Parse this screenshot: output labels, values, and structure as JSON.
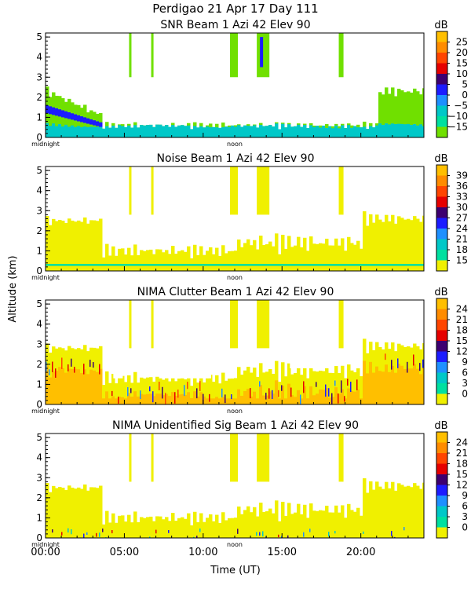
{
  "figure": {
    "title": "Perdigao  21 Apr 17 Day 111",
    "y_axis_label": "Altitude (km)",
    "x_axis_label": "Time (UT)",
    "x_tick_labels": [
      "00:00",
      "05:00",
      "10:00",
      "15:00",
      "20:00"
    ],
    "x_tick_hours": [
      0,
      5,
      10,
      15,
      20
    ],
    "midnight_label": "midnight",
    "noon_label": "noon"
  },
  "chart_data": [
    {
      "type": "heatmap",
      "title": "SNR Beam 1 Azi  42 Elev 90",
      "xlabel": "Time (UT)",
      "ylabel": "Altitude (km)",
      "xlim": [
        0,
        24
      ],
      "ylim": [
        0,
        5.2
      ],
      "yticks": [
        0,
        1,
        2,
        3,
        4,
        5
      ],
      "colorbar": {
        "unit": "dB",
        "ticks": [
          25,
          20,
          15,
          10,
          5,
          0,
          -5,
          -10,
          -15
        ],
        "colors": [
          "#ffbf00",
          "#ff8c00",
          "#ff4500",
          "#e60000",
          "#3d0070",
          "#1c1cff",
          "#1e90ff",
          "#00c8c8",
          "#00e0a0",
          "#70e000"
        ]
      },
      "echo_regions": [
        {
          "hours": [
            0,
            3.5
          ],
          "altitude_top_km": 2.3,
          "level": "-10 to -15 dB"
        },
        {
          "hours": [
            3.5,
            21
          ],
          "altitude_top_km": 0.8,
          "level": "-15 dB"
        },
        {
          "hours": [
            21,
            24
          ],
          "altitude_top_km": 2.7,
          "level": "-10 to -15 dB"
        }
      ],
      "peak_level": "5 to 10 dB"
    },
    {
      "type": "heatmap",
      "title": "Noise Beam 1 Azi  42 Elev 90",
      "xlabel": "Time (UT)",
      "ylabel": "Altitude (km)",
      "xlim": [
        0,
        24
      ],
      "ylim": [
        0,
        5.2
      ],
      "yticks": [
        0,
        1,
        2,
        3,
        4,
        5
      ],
      "colorbar": {
        "unit": "dB",
        "ticks": [
          39,
          36,
          33,
          30,
          27,
          24,
          21,
          18,
          15
        ],
        "colors": [
          "#ffbf00",
          "#ff8c00",
          "#ff4500",
          "#e60000",
          "#3d0070",
          "#1c1cff",
          "#1e90ff",
          "#00c8c8",
          "#00e0a0",
          "#f0f000"
        ]
      },
      "echo_regions": [
        {
          "hours": [
            0,
            24
          ],
          "altitude_top_km": 2.6,
          "level": "15 dB"
        }
      ],
      "peak_level": "18 to 21 dB"
    },
    {
      "type": "heatmap",
      "title": "NIMA Clutter Beam 1 Azi  42 Elev 90",
      "xlabel": "Time (UT)",
      "ylabel": "Altitude (km)",
      "xlim": [
        0,
        24
      ],
      "ylim": [
        0,
        5.2
      ],
      "yticks": [
        0,
        1,
        2,
        3,
        4,
        5
      ],
      "colorbar": {
        "unit": "dB",
        "ticks": [
          24,
          21,
          18,
          15,
          12,
          9,
          6,
          3,
          0
        ],
        "colors": [
          "#ffbf00",
          "#ff8c00",
          "#ff4500",
          "#e60000",
          "#3d0070",
          "#1c1cff",
          "#1e90ff",
          "#00c8c8",
          "#00e0a0",
          "#f0f000"
        ]
      },
      "echo_regions": [
        {
          "hours": [
            0,
            24
          ],
          "altitude_top_km": 2.8,
          "level": "0 dB"
        },
        {
          "hours": [
            0,
            24
          ],
          "altitude_top_km": 1.5,
          "level": "21 to 24 dB"
        }
      ],
      "peak_level": "21 to 24 dB"
    },
    {
      "type": "heatmap",
      "title": "NIMA Unidentified Sig Beam 1 Azi  42 Elev 90",
      "xlabel": "Time (UT)",
      "ylabel": "Altitude (km)",
      "xlim": [
        0,
        24
      ],
      "ylim": [
        0,
        5.2
      ],
      "yticks": [
        0,
        1,
        2,
        3,
        4,
        5
      ],
      "colorbar": {
        "unit": "dB",
        "ticks": [
          24,
          21,
          18,
          15,
          12,
          9,
          6,
          3,
          0
        ],
        "colors": [
          "#ffbf00",
          "#ff8c00",
          "#ff4500",
          "#e60000",
          "#3d0070",
          "#1c1cff",
          "#1e90ff",
          "#00c8c8",
          "#00e0a0",
          "#f0f000"
        ]
      },
      "echo_regions": [
        {
          "hours": [
            0,
            24
          ],
          "altitude_top_km": 2.6,
          "level": "0 dB"
        }
      ],
      "peak_level": "0 to 3 dB"
    }
  ]
}
